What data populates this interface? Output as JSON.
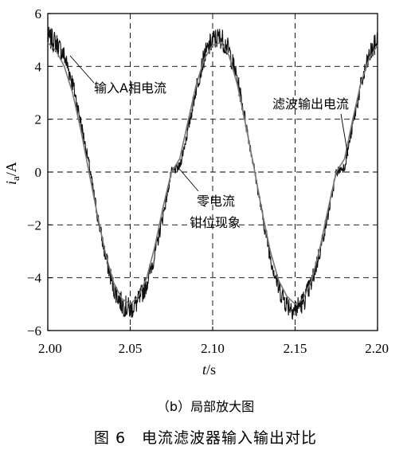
{
  "chart_data": {
    "type": "line",
    "x_ticks": [
      "2.00",
      "2.05",
      "2.10",
      "2.15",
      "2.20"
    ],
    "y_ticks": [
      "6",
      "4",
      "2",
      "0",
      "−2",
      "−4",
      "−6"
    ],
    "xlim": [
      2.0,
      2.2
    ],
    "ylim": [
      -6,
      6
    ],
    "grid": "dashed",
    "xlabel": {
      "main": "t",
      "unit": "/s"
    },
    "ylabel": {
      "main": "i",
      "sub": "a",
      "unit": "/A"
    },
    "series": [
      {
        "name": "输入A相电流",
        "style": "noisy",
        "x": [
          2.0,
          2.005,
          2.01,
          2.015,
          2.02,
          2.025,
          2.03,
          2.035,
          2.04,
          2.045,
          2.05,
          2.055,
          2.06,
          2.065,
          2.07,
          2.075,
          2.08,
          2.085,
          2.09,
          2.095,
          2.1,
          2.105,
          2.11,
          2.115,
          2.12,
          2.125,
          2.13,
          2.135,
          2.14,
          2.145,
          2.15,
          2.155,
          2.16,
          2.165,
          2.17,
          2.175,
          2.18,
          2.185,
          2.19,
          2.195,
          2.2
        ],
        "y": [
          5.1,
          4.9,
          4.4,
          3.4,
          1.9,
          0.3,
          -1.6,
          -3.2,
          -4.4,
          -5.0,
          -5.2,
          -4.9,
          -4.2,
          -3.1,
          -1.6,
          0.0,
          0.2,
          1.6,
          3.2,
          4.4,
          5.0,
          5.1,
          4.6,
          3.5,
          1.9,
          0.2,
          -1.6,
          -3.2,
          -4.4,
          -5.0,
          -5.2,
          -4.9,
          -4.2,
          -3.0,
          -1.6,
          0.0,
          0.2,
          1.8,
          3.3,
          4.4,
          5.0
        ]
      },
      {
        "name": "滤波输出电流",
        "style": "smooth",
        "x": [
          2.0,
          2.005,
          2.01,
          2.015,
          2.02,
          2.025,
          2.03,
          2.035,
          2.04,
          2.045,
          2.05,
          2.055,
          2.06,
          2.065,
          2.07,
          2.075,
          2.08,
          2.085,
          2.09,
          2.095,
          2.1,
          2.105,
          2.11,
          2.115,
          2.12,
          2.125,
          2.13,
          2.135,
          2.14,
          2.145,
          2.15,
          2.155,
          2.16,
          2.165,
          2.17,
          2.175,
          2.18,
          2.185,
          2.19,
          2.195,
          2.2
        ],
        "y": [
          4.9,
          4.6,
          4.0,
          3.0,
          1.6,
          0.0,
          -1.6,
          -3.1,
          -4.2,
          -4.8,
          -5.0,
          -4.7,
          -4.0,
          -2.8,
          -1.3,
          0.0,
          0.5,
          1.9,
          3.3,
          4.3,
          4.8,
          4.9,
          4.4,
          3.3,
          1.8,
          0.2,
          -1.5,
          -3.0,
          -4.1,
          -4.7,
          -5.0,
          -4.8,
          -4.1,
          -2.9,
          -1.4,
          0.0,
          0.5,
          2.0,
          3.4,
          4.3,
          4.8
        ]
      }
    ]
  },
  "annotations": {
    "input_current": "输入A相电流",
    "filter_output": "滤波输出电流",
    "zero_clamp_line1": "零电流",
    "zero_clamp_line2": "钳位现象"
  },
  "caption": {
    "sub": "（b）局部放大图",
    "main": "图 6　电流滤波器输入输出对比"
  }
}
